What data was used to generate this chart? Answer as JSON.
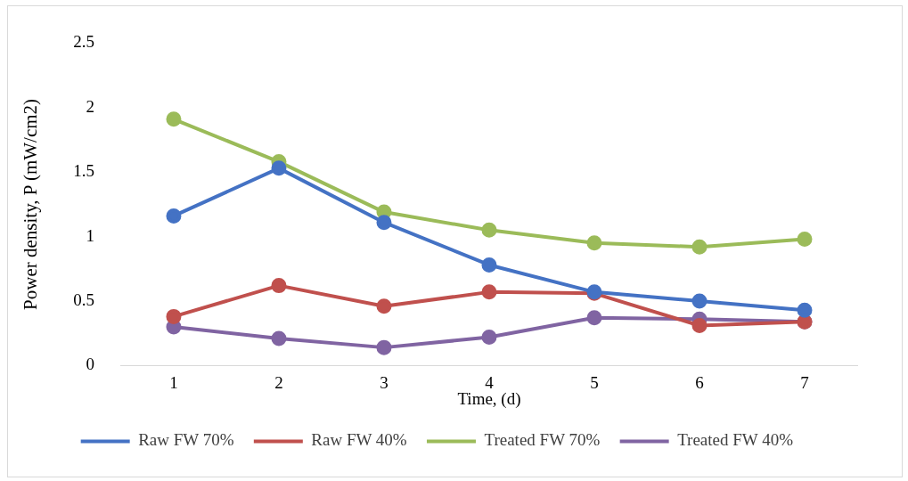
{
  "chart_data": {
    "type": "line",
    "xlabel": "Time, (d)",
    "ylabel": "Power density, P (mW/cm2)",
    "categories": [
      "1",
      "2",
      "3",
      "4",
      "5",
      "6",
      "7"
    ],
    "ylim": [
      0,
      2.5
    ],
    "yticks": [
      0,
      {
        "value": 0.5,
        "label": "0.5"
      },
      1,
      {
        "value": 1.5,
        "label": "1.5"
      },
      2,
      {
        "value": 2.5,
        "label": "2.5"
      }
    ],
    "grid": false,
    "legend": "bottom",
    "marker": "circle",
    "line_style": "solid",
    "series": [
      {
        "name": "Raw FW 70%",
        "color": "#4472c4",
        "values": [
          1.16,
          1.53,
          1.11,
          0.78,
          0.57,
          0.5,
          0.43
        ]
      },
      {
        "name": "Raw FW 40%",
        "color": "#c0504d",
        "values": [
          0.38,
          0.62,
          0.46,
          0.57,
          0.56,
          0.31,
          0.34
        ]
      },
      {
        "name": "Treated FW 70%",
        "color": "#9bbb59",
        "values": [
          1.91,
          1.58,
          1.19,
          1.05,
          0.95,
          0.92,
          0.98
        ]
      },
      {
        "name": "Treated FW 40%",
        "color": "#8064a2",
        "values": [
          0.3,
          0.21,
          0.14,
          0.22,
          0.37,
          0.36,
          0.34
        ]
      }
    ]
  }
}
